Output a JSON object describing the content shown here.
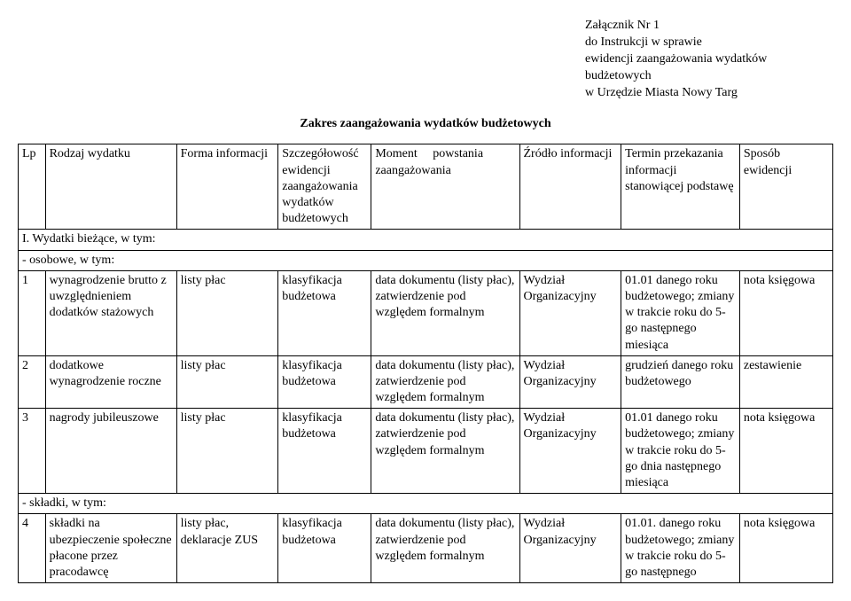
{
  "header": {
    "line1": "Załącznik Nr 1",
    "line2": "do Instrukcji w sprawie",
    "line3": "ewidencji zaangażowania wydatków budżetowych",
    "line4": "w Urzędzie Miasta Nowy Targ"
  },
  "title": "Zakres zaangażowania wydatków budżetowych",
  "columns": {
    "lp": "Lp",
    "rodzaj": "Rodzaj wydatku",
    "forma": "Forma informacji",
    "szczeg": "Szczegółowość ewidencji zaangażowania wydatków budżetowych",
    "moment": "Moment     powstania zaangażowania",
    "zrodlo": "Źródło informacji",
    "termin": "Termin przekazania informacji stanowiącej podstawę",
    "sposob": "Sposób ewidencji"
  },
  "section1": "I. Wydatki bieżące, w tym:",
  "section_osobowe": "- osobowe, w tym:",
  "rows": [
    {
      "lp": "1",
      "rodzaj": "wynagrodzenie brutto z uwzględnieniem dodatków stażowych",
      "forma": "listy płac",
      "szczeg": "klasyfikacja budżetowa",
      "moment": "data dokumentu (listy płac), zatwierdzenie pod względem formalnym",
      "zrodlo": "Wydział Organizacyjny",
      "termin": "01.01 danego roku budżetowego; zmiany w trakcie roku do 5-go następnego miesiąca",
      "sposob": "nota księgowa"
    },
    {
      "lp": "2",
      "rodzaj": "dodatkowe wynagrodzenie roczne",
      "forma": "listy płac",
      "szczeg": "klasyfikacja budżetowa",
      "moment": "data dokumentu (listy płac), zatwierdzenie pod względem formalnym",
      "zrodlo": "Wydział Organizacyjny",
      "termin": "grudzień danego roku budżetowego",
      "sposob": "zestawienie"
    },
    {
      "lp": "3",
      "rodzaj": "nagrody jubileuszowe",
      "forma": "listy płac",
      "szczeg": "klasyfikacja budżetowa",
      "moment": "data dokumentu (listy płac), zatwierdzenie pod względem formalnym",
      "zrodlo": "Wydział Organizacyjny",
      "termin": "01.01 danego roku budżetowego; zmiany w trakcie roku do 5-go dnia następnego miesiąca",
      "sposob": "nota księgowa"
    }
  ],
  "section_skladki": "- składki, w tym:",
  "row4": {
    "lp": "4",
    "rodzaj": "składki na ubezpieczenie społeczne płacone przez pracodawcę",
    "forma": "listy płac, deklaracje ZUS",
    "szczeg": "klasyfikacja budżetowa",
    "moment": "data dokumentu (listy płac), zatwierdzenie pod względem formalnym",
    "zrodlo": "Wydział Organizacyjny",
    "termin": "01.01. danego roku budżetowego; zmiany w trakcie roku do 5-go następnego",
    "sposob": "nota księgowa"
  }
}
